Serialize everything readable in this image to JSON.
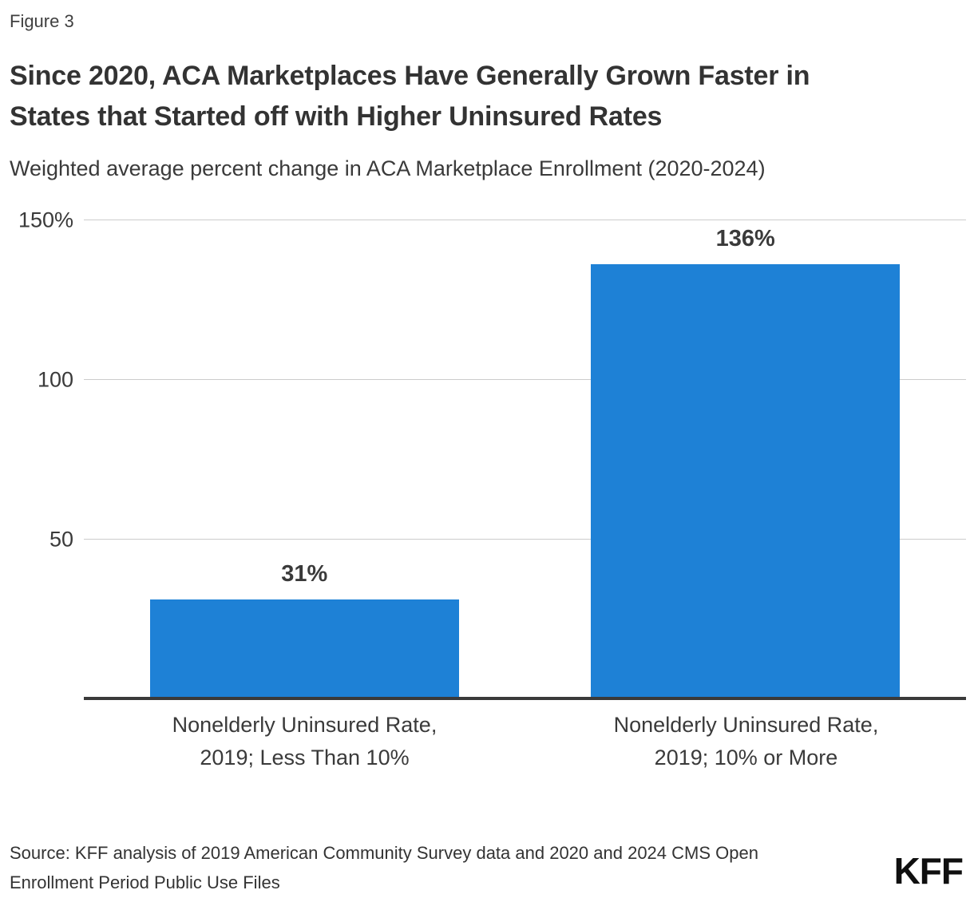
{
  "header": {
    "figure_label": "Figure 3",
    "title_lines": [
      "Since 2020, ACA Marketplaces Have Generally Grown Faster in",
      "States that Started off with Higher Uninsured Rates"
    ],
    "subtitle": "Weighted average percent change in ACA Marketplace Enrollment (2020-2024)"
  },
  "chart_data": {
    "type": "bar",
    "title": "Since 2020, ACA Marketplaces Have Generally Grown Faster in States that Started off with Higher Uninsured Rates",
    "subtitle": "Weighted average percent change in ACA Marketplace Enrollment (2020-2024)",
    "categories": [
      "Nonelderly Uninsured Rate, 2019; Less Than 10%",
      "Nonelderly Uninsured Rate, 2019; 10% or More"
    ],
    "category_lines": [
      [
        "Nonelderly Uninsured Rate,",
        "2019; Less Than 10%"
      ],
      [
        "Nonelderly Uninsured Rate,",
        "2019; 10% or More"
      ]
    ],
    "values": [
      31,
      136
    ],
    "value_labels": [
      "31%",
      "136%"
    ],
    "xlabel": "",
    "ylabel": "",
    "ylim": [
      0,
      150
    ],
    "yticks": [
      {
        "value": 150,
        "label": "150%"
      },
      {
        "value": 100,
        "label": "100"
      },
      {
        "value": 50,
        "label": "50"
      }
    ],
    "grid": "horizontal",
    "legend_position": "none"
  },
  "footer": {
    "source_lines": [
      "Source: KFF analysis of 2019 American Community Survey data and 2020 and 2024 CMS Open",
      "Enrollment Period Public Use Files"
    ],
    "logo_text": "KFF"
  },
  "colors": {
    "bar": "#1E81D6",
    "gridline": "#CCCCCC",
    "axis_line": "#3A3A3A",
    "text": "#333333",
    "logo": "#0F0F0F",
    "background": "#FFFFFF"
  }
}
